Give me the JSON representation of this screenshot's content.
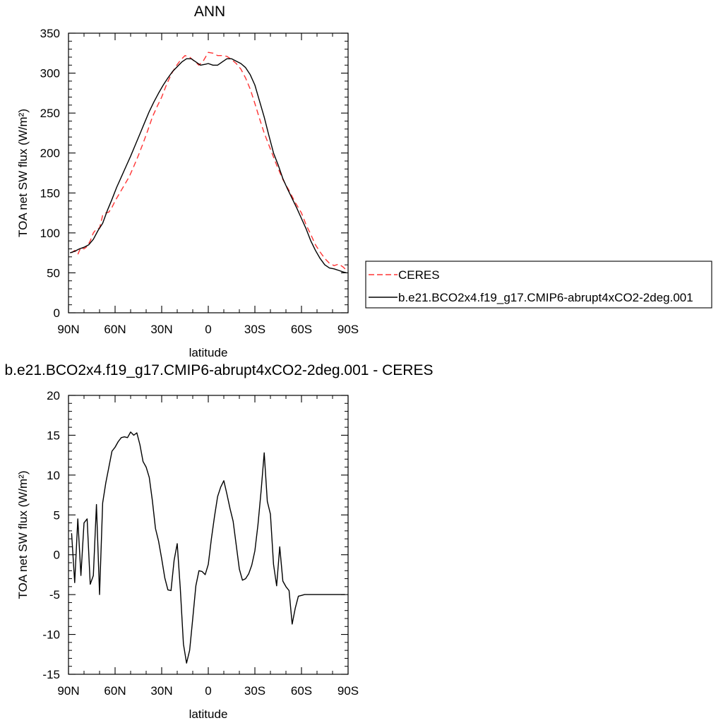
{
  "legend": {
    "entries": [
      {
        "label": "CERES",
        "color": "#ff3333",
        "dash": true
      },
      {
        "label": "b.e21.BCO2x4.f19_g17.CMIP6-abrupt4xCO2-2deg.001",
        "color": "#000000",
        "dash": false
      }
    ]
  },
  "chart_data": [
    {
      "type": "line",
      "title": "ANN",
      "xlabel": "latitude",
      "ylabel": "TOA net SW flux (W/m²)",
      "xlim": [
        90,
        -90
      ],
      "ylim": [
        0,
        350
      ],
      "x_ticks": [
        {
          "value": 90,
          "label": "90N"
        },
        {
          "value": 60,
          "label": "60N"
        },
        {
          "value": 30,
          "label": "30N"
        },
        {
          "value": 0,
          "label": "0"
        },
        {
          "value": -30,
          "label": "30S"
        },
        {
          "value": -60,
          "label": "60S"
        },
        {
          "value": -90,
          "label": "90S"
        }
      ],
      "y_ticks": [
        0,
        50,
        100,
        150,
        200,
        250,
        300,
        350
      ],
      "series": [
        {
          "name": "CERES",
          "color": "#ff3333",
          "dash": true,
          "x": [
            88,
            86,
            84,
            82,
            80,
            78,
            76,
            74,
            72,
            70,
            68,
            66,
            64,
            62,
            60,
            57,
            54,
            51,
            48,
            45,
            42,
            39,
            36,
            33,
            30,
            27,
            24,
            21,
            18,
            15,
            12,
            9,
            6,
            3,
            0,
            -3,
            -6,
            -9,
            -12,
            -15,
            -18,
            -21,
            -24,
            -27,
            -30,
            -33,
            -36,
            -40,
            -44,
            -48,
            -52,
            -56,
            -60,
            -63,
            -66,
            -69,
            -72,
            -75,
            -78,
            -81,
            -84,
            -87,
            -89
          ],
          "y": [
            75,
            78,
            73,
            82,
            80,
            83,
            90,
            100,
            105,
            106,
            122,
            125,
            126,
            132,
            140,
            150,
            160,
            170,
            183,
            197,
            212,
            228,
            245,
            258,
            270,
            285,
            298,
            308,
            316,
            322,
            320,
            315,
            310,
            316,
            326,
            325,
            322,
            322,
            321,
            317,
            312,
            305,
            294,
            280,
            262,
            243,
            225,
            205,
            185,
            167,
            153,
            138,
            125,
            110,
            98,
            85,
            76,
            68,
            62,
            59,
            61,
            57,
            53
          ]
        },
        {
          "name": "b.e21.BCO2x4.f19_g17.CMIP6-abrupt4xCO2-2deg.001",
          "color": "#000000",
          "dash": false,
          "x": [
            89,
            86,
            83,
            80,
            77,
            74,
            71,
            68,
            65,
            62,
            59,
            56,
            53,
            50,
            47,
            44,
            41,
            38,
            35,
            32,
            29,
            26,
            23,
            20,
            17,
            14,
            11,
            8,
            5,
            2,
            0,
            -3,
            -6,
            -9,
            -12,
            -15,
            -18,
            -21,
            -24,
            -27,
            -30,
            -33,
            -36,
            -39,
            -42,
            -45,
            -48,
            -51,
            -54,
            -57,
            -60,
            -63,
            -66,
            -69,
            -72,
            -75,
            -78,
            -81,
            -84,
            -87,
            -89
          ],
          "y": [
            75,
            77,
            80,
            82,
            85,
            92,
            103,
            112,
            128,
            142,
            157,
            170,
            183,
            196,
            210,
            224,
            238,
            252,
            264,
            275,
            285,
            294,
            302,
            308,
            314,
            318,
            318,
            314,
            310,
            311,
            312,
            310,
            310,
            314,
            318,
            318,
            315,
            312,
            307,
            298,
            285,
            265,
            245,
            222,
            200,
            185,
            168,
            155,
            143,
            131,
            118,
            105,
            90,
            78,
            68,
            60,
            56,
            55,
            53,
            51,
            50
          ]
        }
      ]
    },
    {
      "type": "line",
      "title": "b.e21.BCO2x4.f19_g17.CMIP6-abrupt4xCO2-2deg.001 - CERES",
      "xlabel": "latitude",
      "ylabel": "TOA net SW flux (W/m²)",
      "xlim": [
        90,
        -90
      ],
      "ylim": [
        -15,
        20
      ],
      "x_ticks": [
        {
          "value": 90,
          "label": "90N"
        },
        {
          "value": 60,
          "label": "60N"
        },
        {
          "value": 30,
          "label": "30N"
        },
        {
          "value": 0,
          "label": "0"
        },
        {
          "value": -30,
          "label": "30S"
        },
        {
          "value": -60,
          "label": "60S"
        },
        {
          "value": -90,
          "label": "90S"
        }
      ],
      "y_ticks": [
        -15,
        -10,
        -5,
        0,
        5,
        10,
        15,
        20
      ],
      "series": [
        {
          "name": "b.e21.BCO2x4.f19_g17.CMIP6-abrupt4xCO2-2deg.001 - CERES",
          "color": "#000000",
          "dash": false,
          "x": [
            88,
            86,
            84,
            82,
            80,
            78,
            76,
            74,
            72,
            70,
            68,
            66,
            64,
            62,
            60,
            58,
            56,
            54,
            52,
            50,
            48,
            46,
            44,
            42,
            40,
            38,
            36,
            34,
            32,
            30,
            28,
            26,
            24,
            22,
            20,
            18,
            16,
            14,
            12,
            10,
            8,
            6,
            4,
            2,
            0,
            -2,
            -4,
            -6,
            -8,
            -10,
            -12,
            -14,
            -16,
            -18,
            -20,
            -22,
            -24,
            -26,
            -28,
            -30,
            -32,
            -34,
            -36,
            -38,
            -40,
            -42,
            -44,
            -46,
            -48,
            -50,
            -52,
            -54,
            -56,
            -58,
            -60,
            -62,
            -64,
            -66,
            -68,
            -70,
            -72,
            -74,
            -76,
            -78,
            -80,
            -82,
            -84,
            -86,
            -88
          ],
          "y": [
            2.7,
            -3.5,
            4.5,
            -2.6,
            4.0,
            4.5,
            -3.7,
            -2.6,
            6.3,
            -5.0,
            6.5,
            9.0,
            11.0,
            13.0,
            13.5,
            14.2,
            14.7,
            14.8,
            14.7,
            15.4,
            15.0,
            15.3,
            13.8,
            11.7,
            11.0,
            9.7,
            6.8,
            3.3,
            1.7,
            -0.5,
            -2.9,
            -4.4,
            -4.5,
            -0.7,
            1.4,
            -4.3,
            -11.2,
            -13.6,
            -12.0,
            -8.0,
            -3.9,
            -2.0,
            -2.1,
            -2.5,
            -1.2,
            2.0,
            4.8,
            7.3,
            8.5,
            9.3,
            7.6,
            5.8,
            4.2,
            1.2,
            -1.8,
            -3.2,
            -3.0,
            -2.4,
            -1.3,
            0.5,
            3.8,
            8.0,
            12.8,
            6.7,
            5.1,
            -1.2,
            -3.9,
            1.0,
            -3.3,
            -4.0,
            -4.5,
            -8.7,
            -6.7,
            -5.2,
            -5.1,
            -5.0,
            -5.0,
            -5.0,
            -5.0,
            -5.0,
            -5.0,
            -5.0,
            -5.0,
            -5.0,
            -5.0,
            -5.0,
            -5.0,
            -5.0,
            -5.0
          ]
        }
      ]
    }
  ]
}
